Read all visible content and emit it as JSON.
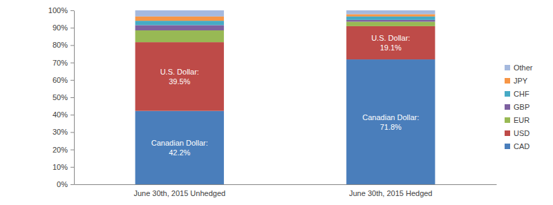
{
  "chart_data": {
    "type": "bar",
    "stacked": true,
    "data_labels": true,
    "legend": "right",
    "categories": [
      "June 30th, 2015 Unhedged",
      "June 30th, 2015 Hedged"
    ],
    "ylim": [
      0,
      100
    ],
    "yticks": [
      {
        "value": 0,
        "label": "0%"
      },
      {
        "value": 10,
        "label": "10%"
      },
      {
        "value": 20,
        "label": "20%"
      },
      {
        "value": 30,
        "label": "30%"
      },
      {
        "value": 40,
        "label": "40%"
      },
      {
        "value": 50,
        "label": "50%"
      },
      {
        "value": 60,
        "label": "60%"
      },
      {
        "value": 70,
        "label": "70%"
      },
      {
        "value": 80,
        "label": "80%"
      },
      {
        "value": 90,
        "label": "90%"
      },
      {
        "value": 100,
        "label": "100%"
      }
    ],
    "series": [
      {
        "name": "CAD",
        "color": "#4a7ebb",
        "values": [
          42.2,
          71.8
        ],
        "value_labels": [
          "Canadian Dollar: 42.2%",
          "Canadian Dollar: 71.8%"
        ]
      },
      {
        "name": "USD",
        "color": "#be4b48",
        "values": [
          39.5,
          19.1
        ],
        "value_labels": [
          "U.S. Dollar: 39.5%",
          "U.S. Dollar: 19.1%"
        ]
      },
      {
        "name": "EUR",
        "color": "#98b954",
        "values": [
          6.8,
          2.6
        ]
      },
      {
        "name": "GBP",
        "color": "#7d60a0",
        "values": [
          3.0,
          1.0
        ]
      },
      {
        "name": "CHF",
        "color": "#46aac5",
        "values": [
          2.5,
          2.0
        ]
      },
      {
        "name": "JPY",
        "color": "#f79646",
        "values": [
          2.5,
          1.3
        ]
      },
      {
        "name": "Other",
        "color": "#a5b9de",
        "values": [
          3.5,
          2.2
        ]
      }
    ]
  }
}
